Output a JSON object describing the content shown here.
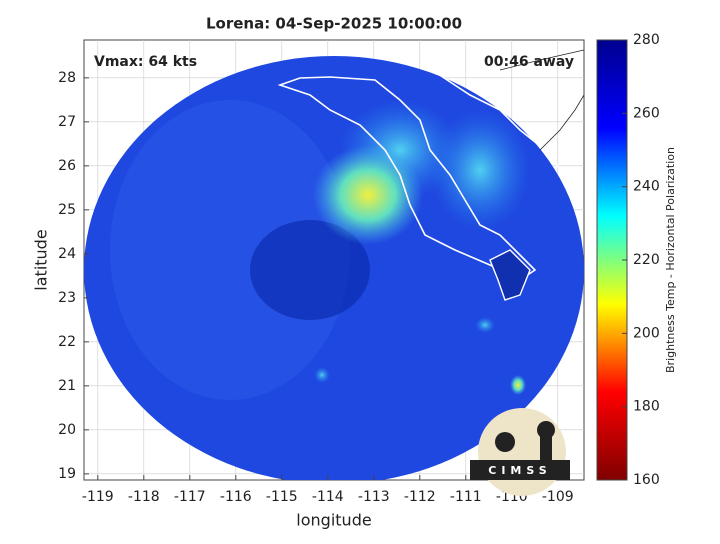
{
  "chart_data": {
    "type": "map",
    "title": "Lorena: 04-Sep-2025 10:00:00",
    "annotations": [
      "Vmax: 64 kts",
      "00:46 away"
    ],
    "xlabel": "longitude",
    "ylabel": "latitude",
    "xlim": [
      -119.3,
      -108.43
    ],
    "ylim": [
      18.86,
      28.86
    ],
    "xticks": [
      -119,
      -118,
      -117,
      -116,
      -115,
      -114,
      -113,
      -112,
      -111,
      -110,
      -109
    ],
    "yticks": [
      19,
      20,
      21,
      22,
      23,
      24,
      25,
      26,
      27,
      28
    ],
    "grid": true,
    "colorbar": {
      "label": "Brightness Temp - Horizontal Polarization",
      "clim": [
        160,
        280
      ],
      "ticks": [
        160,
        180,
        200,
        220,
        240,
        260,
        280
      ],
      "colormap": [
        "#800000",
        "#ff0000",
        "#ffff00",
        "#00ffff",
        "#0000ff",
        "#00008f"
      ]
    },
    "logo_text": "CIMSS"
  }
}
